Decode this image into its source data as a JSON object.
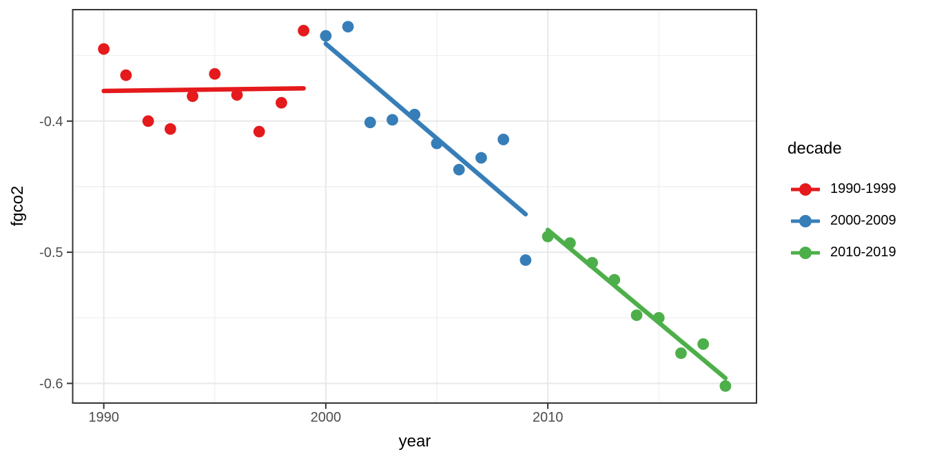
{
  "chart_data": {
    "type": "scatter",
    "title": "",
    "xlabel": "year",
    "ylabel": "fgco2",
    "legend": {
      "title": "decade",
      "position": "right"
    },
    "xlim": [
      1988.6,
      2019.4
    ],
    "ylim": [
      -0.615,
      -0.315
    ],
    "x_ticks": [
      1990,
      2000,
      2010
    ],
    "x_tick_labels": [
      "1990",
      "2000",
      "2010"
    ],
    "y_ticks": [
      -0.4,
      -0.5,
      -0.6
    ],
    "y_tick_labels": [
      "-0.4",
      "-0.5",
      "-0.6"
    ],
    "x_minor_gridlines": [
      1995,
      2005,
      2015
    ],
    "y_minor_gridlines": [
      -0.35,
      -0.45,
      -0.55
    ],
    "grid": true,
    "series": [
      {
        "name": "1990-1999",
        "color": "#E41A1C",
        "x": [
          1990,
          1991,
          1992,
          1993,
          1994,
          1995,
          1996,
          1997,
          1998,
          1999
        ],
        "y": [
          -0.345,
          -0.365,
          -0.4,
          -0.406,
          -0.381,
          -0.364,
          -0.38,
          -0.408,
          -0.386,
          -0.331
        ],
        "trend": {
          "x": [
            1990,
            1999
          ],
          "y": [
            -0.377,
            -0.375
          ]
        }
      },
      {
        "name": "2000-2009",
        "color": "#377EB8",
        "x": [
          2000,
          2001,
          2002,
          2003,
          2004,
          2005,
          2006,
          2007,
          2008,
          2009
        ],
        "y": [
          -0.335,
          -0.328,
          -0.401,
          -0.399,
          -0.395,
          -0.417,
          -0.437,
          -0.428,
          -0.414,
          -0.506
        ],
        "trend": {
          "x": [
            2000,
            2009
          ],
          "y": [
            -0.341,
            -0.471
          ]
        }
      },
      {
        "name": "2010-2019",
        "color": "#4DAF4A",
        "x": [
          2010,
          2011,
          2012,
          2013,
          2014,
          2015,
          2016,
          2017,
          2018
        ],
        "y": [
          -0.488,
          -0.493,
          -0.508,
          -0.521,
          -0.548,
          -0.55,
          -0.577,
          -0.57,
          -0.602
        ],
        "trend": {
          "x": [
            2010,
            2018
          ],
          "y": [
            -0.483,
            -0.596
          ]
        }
      }
    ],
    "style": {
      "point_radius": 8.4,
      "trend_line_width": 6.5,
      "panel_border_color": "#333333",
      "grid_major_color": "#e8e8e8",
      "grid_minor_color": "#f1f1f1",
      "tick_mark_color": "#333333",
      "tick_label_color": "#4d4d4d",
      "background_color": "#ffffff"
    }
  }
}
